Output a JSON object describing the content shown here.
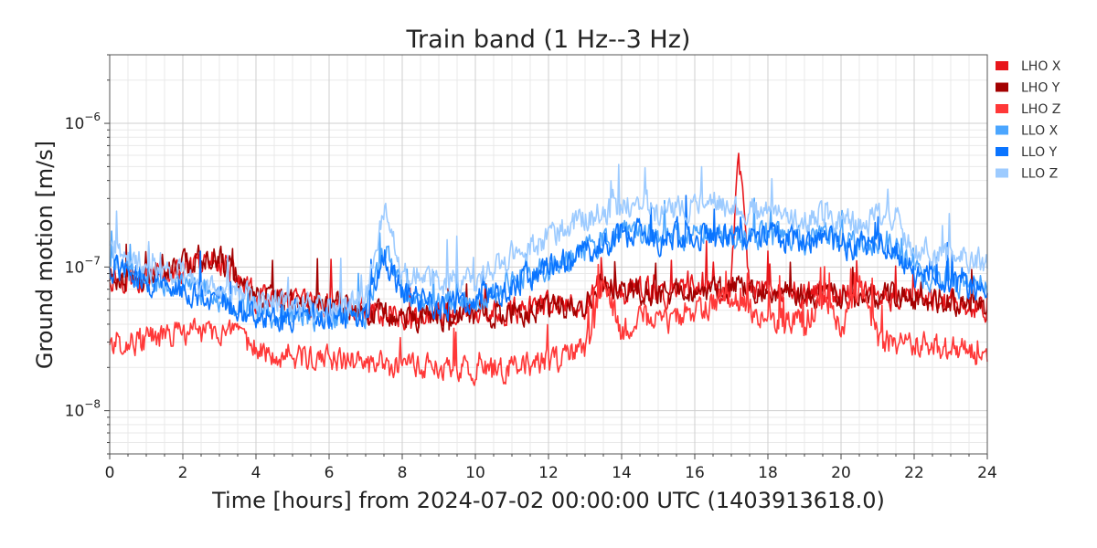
{
  "chart_data": {
    "type": "line",
    "title": "Train band (1 Hz--3 Hz)",
    "xlabel": "Time [hours] from 2024-07-02 00:00:00 UTC (1403913618.0)",
    "ylabel": "Ground motion [m/s]",
    "xlim": [
      0,
      24
    ],
    "ylim": [
      5e-09,
      3e-06
    ],
    "yscale": "log",
    "grid": true,
    "legend_position": "right",
    "x_ticks": [
      0,
      2,
      4,
      6,
      8,
      10,
      12,
      14,
      16,
      18,
      20,
      22,
      24
    ],
    "x_tick_labels": [
      "0",
      "2",
      "4",
      "6",
      "8",
      "10",
      "12",
      "14",
      "16",
      "18",
      "20",
      "22",
      "24"
    ],
    "y_ticks": [
      1e-08,
      1e-07,
      1e-06
    ],
    "y_tick_labels": [
      {
        "base": "10",
        "exp": "−8"
      },
      {
        "base": "10",
        "exp": "−7"
      },
      {
        "base": "10",
        "exp": "−6"
      }
    ],
    "x": [
      0,
      1,
      2,
      3,
      4,
      5,
      6,
      7,
      7.5,
      8,
      9,
      10,
      11,
      12,
      13,
      13.5,
      14,
      14.5,
      15,
      16,
      16.5,
      17,
      17.2,
      17.5,
      18,
      19,
      19.5,
      20,
      20.5,
      21,
      21.5,
      22,
      23,
      24
    ],
    "series": [
      {
        "name": "LHO X",
        "color": "#e8161b",
        "values": [
          8.5e-08,
          8.5e-08,
          9e-08,
          1.15e-07,
          6e-08,
          5.5e-08,
          5.5e-08,
          5e-08,
          4.8e-08,
          4.6e-08,
          4.6e-08,
          4.8e-08,
          5e-08,
          5.2e-08,
          5.5e-08,
          8e-08,
          6.5e-08,
          7e-08,
          6.5e-08,
          7e-08,
          7e-08,
          7e-08,
          6.2e-07,
          7e-08,
          7e-08,
          6.5e-08,
          6.5e-08,
          6.5e-08,
          6.5e-08,
          6.2e-08,
          6.2e-08,
          6e-08,
          5.8e-08,
          5e-08
        ]
      },
      {
        "name": "LHO Y",
        "color": "#a30000",
        "values": [
          8.5e-08,
          8.5e-08,
          1.1e-07,
          1.2e-07,
          6e-08,
          5.8e-08,
          5.5e-08,
          5e-08,
          4.8e-08,
          4.6e-08,
          4.5e-08,
          4.7e-08,
          4.9e-08,
          5.1e-08,
          5.4e-08,
          8e-08,
          6.5e-08,
          7e-08,
          6.5e-08,
          7e-08,
          7e-08,
          7e-08,
          8e-08,
          7e-08,
          7e-08,
          6.5e-08,
          6.5e-08,
          6.5e-08,
          6.5e-08,
          6.2e-08,
          6.2e-08,
          6e-08,
          5.8e-08,
          5e-08
        ]
      },
      {
        "name": "LHO Z",
        "color": "#ff3838",
        "values": [
          3e-08,
          3.1e-08,
          3.5e-08,
          3.6e-08,
          2.7e-08,
          2.4e-08,
          2.3e-08,
          2.1e-08,
          2.05e-08,
          2e-08,
          2e-08,
          1.9e-08,
          2e-08,
          2.2e-08,
          2.6e-08,
          8e-08,
          3.5e-08,
          4.5e-08,
          4e-08,
          5e-08,
          5.5e-08,
          6e-08,
          5.5e-08,
          5e-08,
          4.5e-08,
          4e-08,
          6e-08,
          3.5e-08,
          8e-08,
          3.2e-08,
          3e-08,
          2.9e-08,
          2.7e-08,
          2.4e-08
        ]
      },
      {
        "name": "LLO X",
        "color": "#4ba6ff",
        "values": [
          1.1e-07,
          8.5e-08,
          7.5e-08,
          6e-08,
          4.8e-08,
          4.6e-08,
          4.4e-08,
          4.8e-08,
          1.3e-07,
          7e-08,
          5.5e-08,
          6e-08,
          8e-08,
          1.05e-07,
          1.3e-07,
          1.5e-07,
          1.7e-07,
          1.8e-07,
          1.6e-07,
          1.7e-07,
          1.8e-07,
          1.7e-07,
          1.6e-07,
          1.6e-07,
          1.7e-07,
          1.5e-07,
          1.6e-07,
          1.5e-07,
          1.4e-07,
          1.6e-07,
          1.4e-07,
          9e-08,
          8e-08,
          7e-08
        ]
      },
      {
        "name": "LLO Y",
        "color": "#0a74ff",
        "values": [
          1e-07,
          8e-08,
          7e-08,
          5.8e-08,
          4.7e-08,
          4.5e-08,
          4.3e-08,
          4.7e-08,
          1.2e-07,
          6.5e-08,
          5.3e-08,
          5.8e-08,
          7.5e-08,
          1e-07,
          1.25e-07,
          1.45e-07,
          1.65e-07,
          1.75e-07,
          1.55e-07,
          1.65e-07,
          1.75e-07,
          1.65e-07,
          1.55e-07,
          1.55e-07,
          1.65e-07,
          1.45e-07,
          1.55e-07,
          1.45e-07,
          1.35e-07,
          1.55e-07,
          1.35e-07,
          8.5e-08,
          7.5e-08,
          6.8e-08
        ]
      },
      {
        "name": "LLO Z",
        "color": "#9dcbff",
        "values": [
          1.4e-07,
          1e-07,
          9e-08,
          7e-08,
          6e-08,
          5.5e-08,
          5.2e-08,
          6e-08,
          2.5e-07,
          9e-08,
          8e-08,
          8e-08,
          1.2e-07,
          1.6e-07,
          2.1e-07,
          2.4e-07,
          2.6e-07,
          3e-07,
          2.4e-07,
          2.6e-07,
          2.8e-07,
          2.5e-07,
          2.4e-07,
          2.4e-07,
          2.5e-07,
          2.2e-07,
          2.3e-07,
          2.1e-07,
          2e-07,
          2.2e-07,
          2.2e-07,
          1.3e-07,
          1.2e-07,
          1.1e-07
        ]
      }
    ]
  }
}
